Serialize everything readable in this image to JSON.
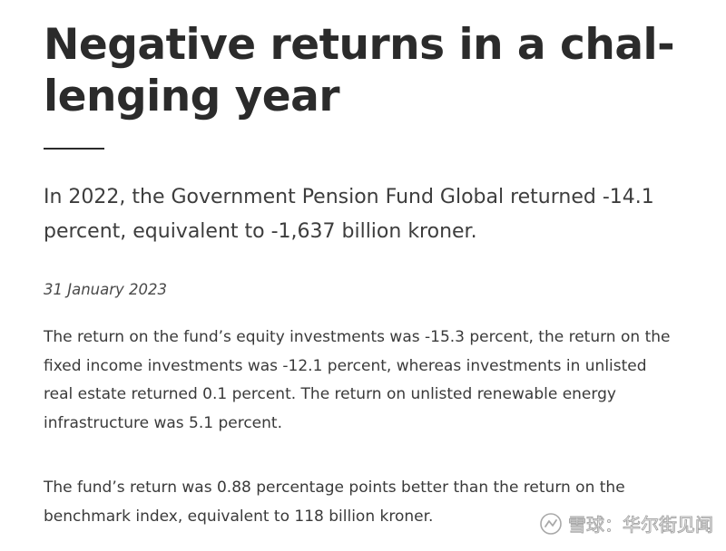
{
  "article": {
    "title_lines": [
      "Negative returns in a chal-",
      "lenging year"
    ],
    "lead_lines": [
      "In 2022, the Government Pension Fund Global returned -14.1",
      "percent, equivalent to -1,637 billion kroner."
    ],
    "date": "31 January 2023",
    "paragraph1_lines": [
      "The return on the fund’s equity investments was -15.3 percent, the return on the",
      "fixed income investments was -12.1 percent, whereas investments in unlisted",
      "real estate returned 0.1 percent. The return on unlisted renewable energy",
      "infrastructure was 5.1 percent."
    ],
    "paragraph2_lines": [
      "The fund’s return was 0.88 percentage points better than the return on the",
      "benchmark index, equivalent to 118 billion kroner."
    ]
  },
  "watermark": {
    "text": "雪球：华尔街见闻",
    "icon": "snowball-logo-icon"
  }
}
